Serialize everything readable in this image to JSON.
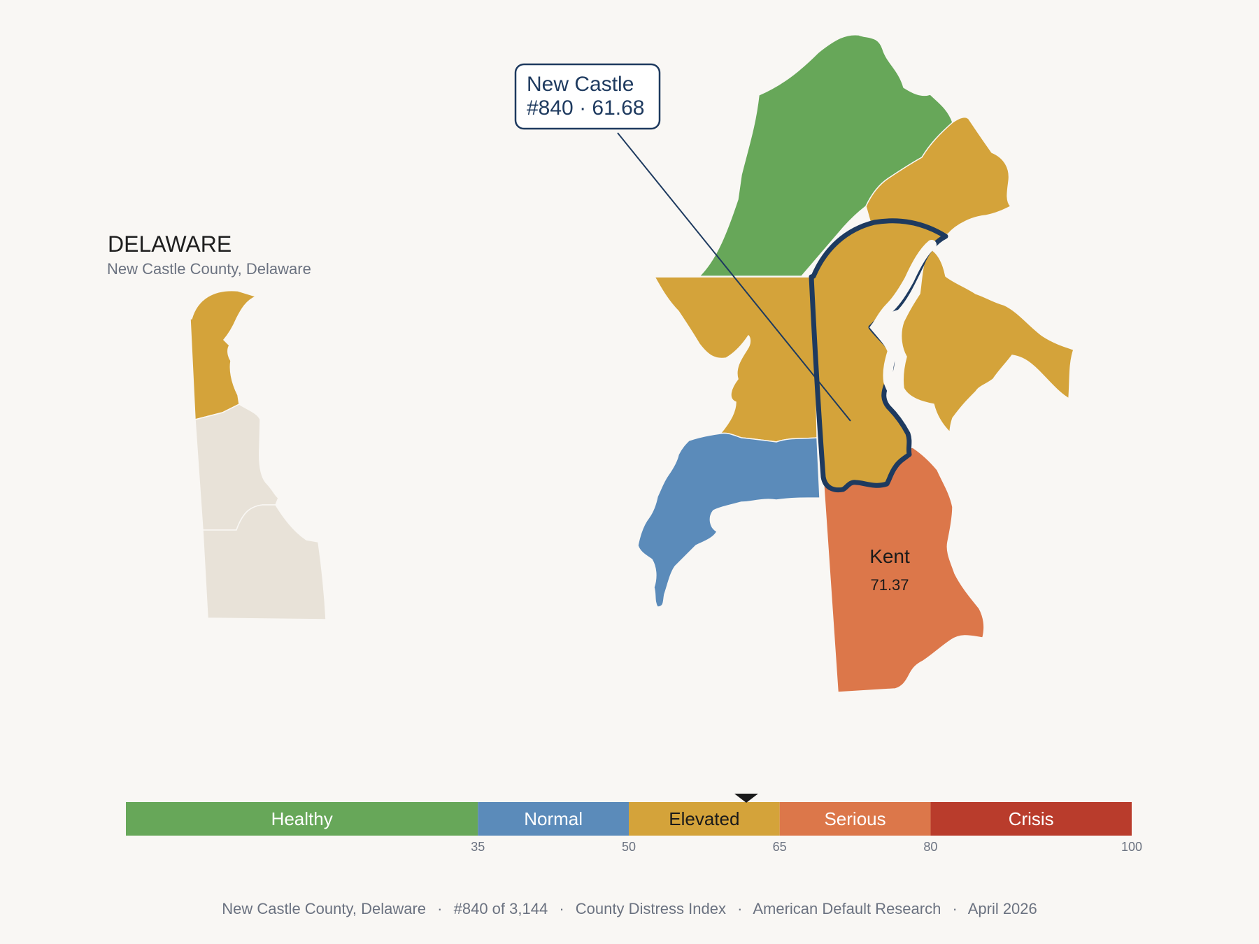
{
  "inset": {
    "title": "DELAWARE",
    "subtitle": "New Castle County, Delaware"
  },
  "callout": {
    "line1": "New Castle",
    "line2": "#840 · 61.68"
  },
  "kent_label": {
    "name": "Kent",
    "value": "71.37"
  },
  "colors": {
    "healthy": "#67a759",
    "normal": "#5b8bba",
    "elevated": "#d4a33a",
    "serious": "#dc774a",
    "crisis": "#b93c2c",
    "highlight": "#1e3a5f",
    "inset_other": "#e8e2d8"
  },
  "scale": {
    "min": 0,
    "max": 100,
    "marker_value": 61.68,
    "bands": [
      {
        "label": "Healthy",
        "from": 0,
        "to": 35,
        "color": "#67a759",
        "text_color": "#ffffff"
      },
      {
        "label": "Normal",
        "from": 35,
        "to": 50,
        "color": "#5b8bba",
        "text_color": "#ffffff"
      },
      {
        "label": "Elevated",
        "from": 50,
        "to": 65,
        "color": "#d4a33a",
        "text_color": "#1a1a1a"
      },
      {
        "label": "Serious",
        "from": 65,
        "to": 80,
        "color": "#dc774a",
        "text_color": "#ffffff"
      },
      {
        "label": "Crisis",
        "from": 80,
        "to": 100,
        "color": "#b93c2c",
        "text_color": "#ffffff"
      }
    ],
    "ticks": [
      "35",
      "50",
      "65",
      "80",
      "100"
    ]
  },
  "footer": {
    "county": "New Castle County, Delaware",
    "rank": "#840 of 3,144",
    "index": "County Distress Index",
    "source": "American Default Research",
    "date": "April 2026",
    "separator": "·"
  }
}
